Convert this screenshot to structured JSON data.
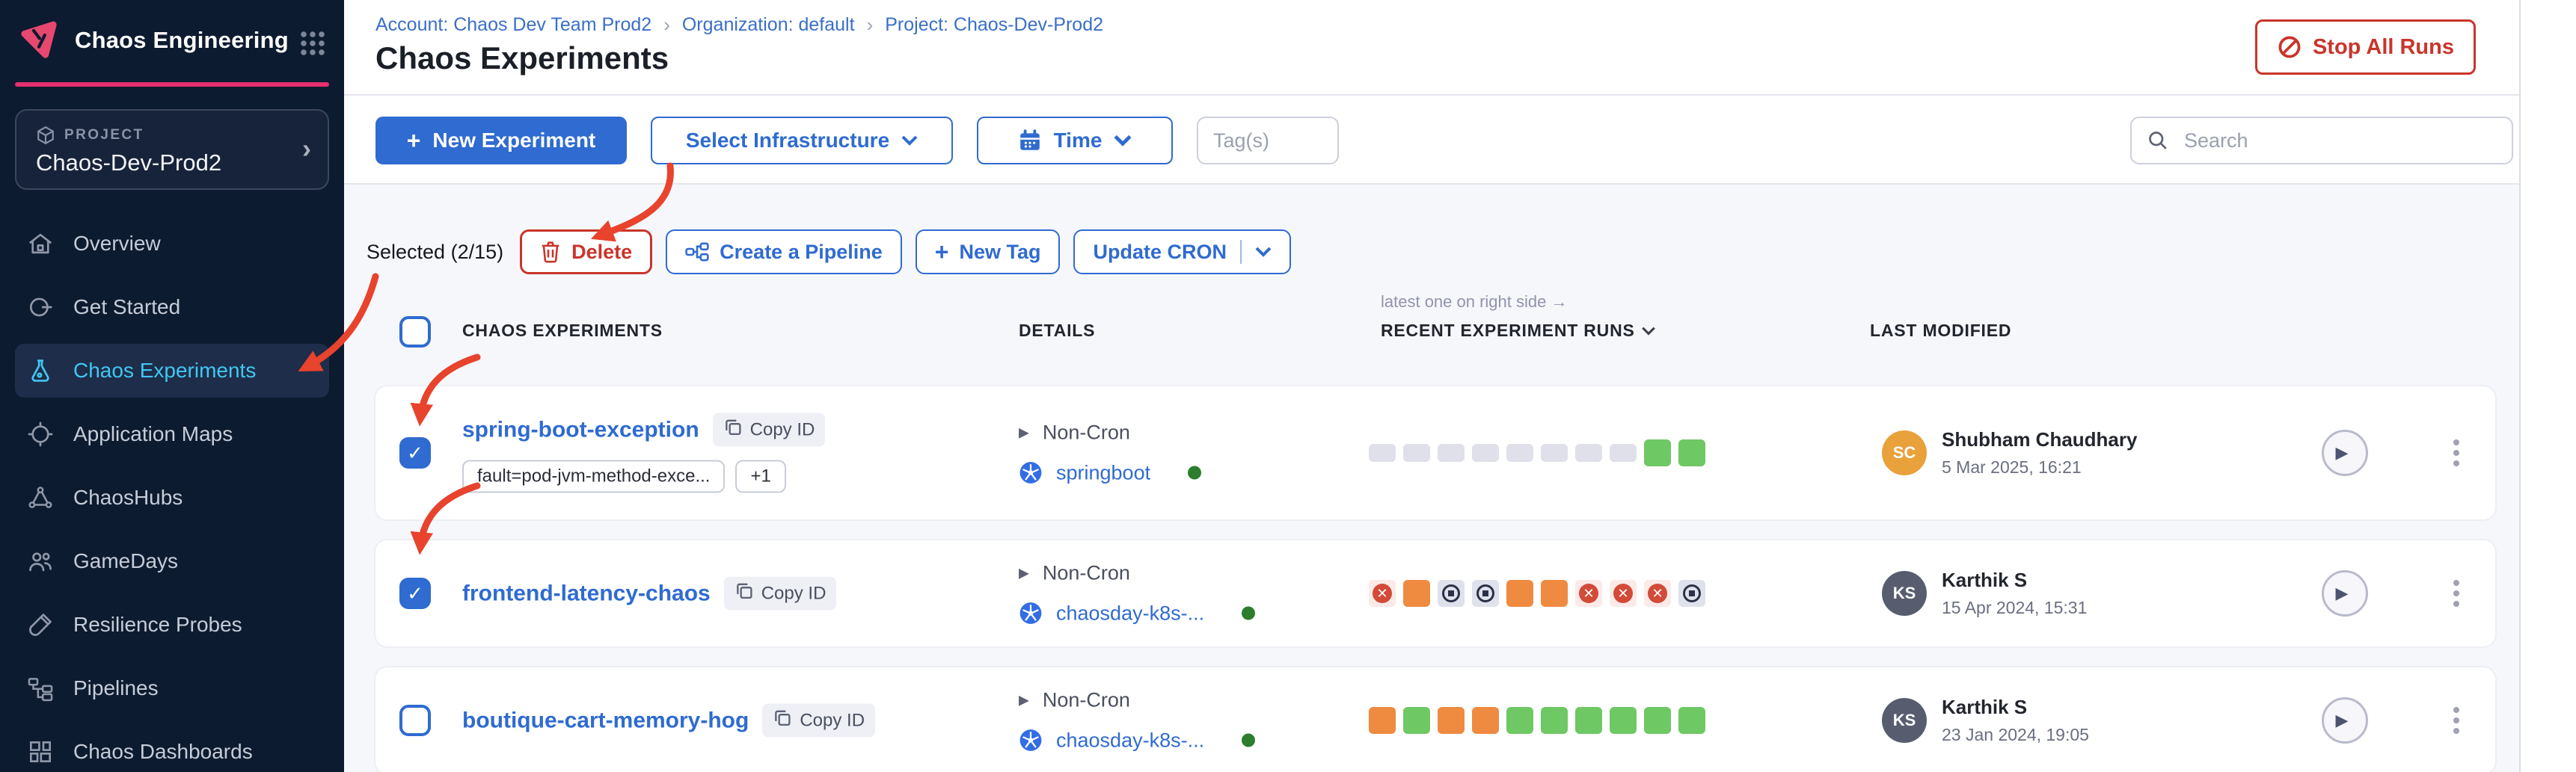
{
  "app": {
    "title": "Chaos Engineering"
  },
  "icons": {
    "play": "▶",
    "check": "✓",
    "chevron_right": "›"
  },
  "colors": {
    "accent_blue": "#2f6bd0",
    "active_nav_blue": "#41c7f2",
    "danger_red": "#c9352b",
    "annotation_red": "#e8432c",
    "run_green": "#6ec863",
    "run_orange": "#ef8a41",
    "run_gray": "#dfe0ea",
    "sidebar_bg": "#0d1b30",
    "brand_pink": "#e5306f"
  },
  "sidebar": {
    "project_label": "PROJECT",
    "project_name": "Chaos-Dev-Prod2",
    "items": [
      {
        "label": "Overview",
        "icon": "home-icon",
        "active": false
      },
      {
        "label": "Get Started",
        "icon": "get-started-icon",
        "active": false
      },
      {
        "label": "Chaos Experiments",
        "icon": "flask-icon",
        "active": true
      },
      {
        "label": "Application Maps",
        "icon": "application-maps-icon",
        "active": false
      },
      {
        "label": "ChaosHubs",
        "icon": "chaoshubs-icon",
        "active": false
      },
      {
        "label": "GameDays",
        "icon": "gamedays-icon",
        "active": false
      },
      {
        "label": "Resilience Probes",
        "icon": "probe-icon",
        "active": false
      },
      {
        "label": "Pipelines",
        "icon": "pipelines-icon",
        "active": false
      },
      {
        "label": "Chaos Dashboards",
        "icon": "dashboards-icon",
        "active": false
      }
    ]
  },
  "breadcrumb": {
    "account": "Account: Chaos Dev Team Prod2",
    "organization": "Organization: default",
    "project": "Project: Chaos-Dev-Prod2"
  },
  "header": {
    "title": "Chaos Experiments",
    "stop_all_runs": "Stop All Runs"
  },
  "toolbar": {
    "new_experiment": "New Experiment",
    "select_infrastructure": "Select Infrastructure",
    "time": "Time",
    "tags_placeholder": "Tag(s)",
    "search_placeholder": "Search"
  },
  "selection": {
    "label": "Selected (2/15)",
    "delete": "Delete",
    "create_pipeline": "Create a Pipeline",
    "new_tag": "New Tag",
    "update_cron": "Update CRON"
  },
  "table": {
    "note": "latest one on right side →",
    "headers": {
      "experiments": "CHAOS EXPERIMENTS",
      "details": "DETAILS",
      "recent_runs": "RECENT EXPERIMENT RUNS",
      "last_modified": "LAST MODIFIED"
    },
    "rows": [
      {
        "name": "spring-boot-exception",
        "copy_id": "Copy ID",
        "tags": [
          "fault=pod-jvm-method-exce...",
          "+1"
        ],
        "schedule": "Non-Cron",
        "infrastructure": "springboot",
        "checked": true,
        "runs": [
          "empty",
          "empty",
          "empty",
          "empty",
          "empty",
          "empty",
          "empty",
          "empty",
          "green",
          "green"
        ],
        "modified": {
          "initials": "SC",
          "name": "Shubham Chaudhary",
          "date": "5 Mar 2025, 16:21",
          "avatar_color": "#e9a13b"
        }
      },
      {
        "name": "frontend-latency-chaos",
        "copy_id": "Copy ID",
        "tags": [],
        "schedule": "Non-Cron",
        "infrastructure": "chaosday-k8s-...",
        "checked": true,
        "runs": [
          "failed",
          "orange",
          "stopped",
          "stopped",
          "orange",
          "orange",
          "failed",
          "failed",
          "failed",
          "stopped"
        ],
        "modified": {
          "initials": "KS",
          "name": "Karthik S",
          "date": "15 Apr 2024, 15:31",
          "avatar_color": "#575d6f"
        }
      },
      {
        "name": "boutique-cart-memory-hog",
        "copy_id": "Copy ID",
        "tags": [],
        "schedule": "Non-Cron",
        "infrastructure": "chaosday-k8s-...",
        "checked": false,
        "runs": [
          "orange",
          "green",
          "orange",
          "orange",
          "green",
          "green",
          "green",
          "green",
          "green",
          "green"
        ],
        "modified": {
          "initials": "KS",
          "name": "Karthik S",
          "date": "23 Jan 2024, 19:05",
          "avatar_color": "#575d6f"
        }
      }
    ]
  }
}
